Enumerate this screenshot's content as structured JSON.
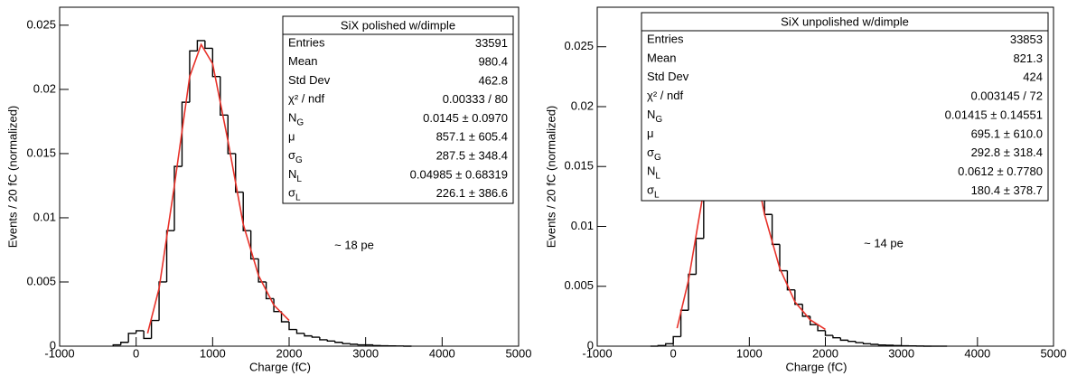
{
  "chart_data": [
    {
      "type": "histogram",
      "x_label": "Charge (fC)",
      "y_label": "Events / 20 fC (normalized)",
      "bins": [
        -300,
        -200,
        -100,
        0,
        100,
        200,
        300,
        400,
        500,
        600,
        700,
        800,
        900,
        1000,
        1100,
        1200,
        1300,
        1400,
        1500,
        1600,
        1700,
        1800,
        1900,
        2000,
        2100,
        2200,
        2300,
        2400,
        2500,
        2600,
        2700,
        2800,
        2900,
        3000,
        3100,
        3200,
        3300,
        3400,
        3500,
        3600
      ],
      "values": [
        0.0001,
        0.0003,
        0.001,
        0.0012,
        0.0006,
        0.002,
        0.005,
        0.009,
        0.014,
        0.019,
        0.023,
        0.0238,
        0.0232,
        0.021,
        0.018,
        0.015,
        0.012,
        0.009,
        0.0068,
        0.005,
        0.0037,
        0.0027,
        0.0019,
        0.0013,
        0.001,
        0.0008,
        0.0007,
        0.0005,
        0.0004,
        0.0003,
        0.0002,
        0.00015,
        0.0001,
        0.0001,
        5e-05,
        3e-05,
        2e-05,
        1e-05,
        0
      ],
      "color": "#000000",
      "fit": {
        "x": [
          150,
          300,
          500,
          700,
          850,
          1000,
          1200,
          1400,
          1600,
          1800,
          2000
        ],
        "values": [
          0.001,
          0.0045,
          0.0125,
          0.021,
          0.0235,
          0.022,
          0.016,
          0.0095,
          0.0055,
          0.0032,
          0.002
        ],
        "color": "#e8322a"
      },
      "xlim": [
        -1000,
        5000
      ],
      "xticks": [
        -1000,
        0,
        1000,
        2000,
        3000,
        4000,
        5000
      ],
      "ylim": [
        0,
        0.0264
      ],
      "yticks": [
        0,
        0.005,
        0.01,
        0.015,
        0.02,
        0.025
      ],
      "stats": {
        "title": "SiX polished w/dimple",
        "rows": [
          {
            "name": "Entries",
            "value": "33591"
          },
          {
            "name": "Mean",
            "value": "980.4"
          },
          {
            "name": "Std Dev",
            "value": "462.8"
          },
          {
            "name": "χ² / ndf",
            "value": "0.00333 / 80"
          },
          {
            "name": "N",
            "sub": "G",
            "value": "0.0145 ± 0.0970"
          },
          {
            "name": "μ",
            "value": "857.1 ± 605.4"
          },
          {
            "name": "σ",
            "sub": "G",
            "value": "287.5 ± 348.4"
          },
          {
            "name": "N",
            "sub": "L",
            "value": "0.04985 ± 0.68319"
          },
          {
            "name": "σ",
            "sub": "L",
            "value": "226.1 ± 386.6"
          }
        ]
      },
      "annotation": "~ 18 pe",
      "annotation_color": "#ff0000"
    },
    {
      "type": "histogram",
      "x_label": "Charge (fC)",
      "y_label": "Events / 20 fC (normalized)",
      "bins": [
        -300,
        -200,
        -100,
        0,
        100,
        200,
        300,
        400,
        500,
        600,
        700,
        800,
        900,
        1000,
        1100,
        1200,
        1300,
        1400,
        1500,
        1600,
        1700,
        1800,
        1900,
        2000,
        2100,
        2200,
        2300,
        2400,
        2500,
        2600,
        2700,
        2800,
        2900,
        3000,
        3100,
        3200,
        3300,
        3400,
        3500,
        3600
      ],
      "values": [
        0,
        5e-05,
        0.0002,
        0.0008,
        0.003,
        0.006,
        0.009,
        0.013,
        0.018,
        0.023,
        0.025,
        0.0235,
        0.02,
        0.017,
        0.014,
        0.011,
        0.0085,
        0.0063,
        0.0047,
        0.0035,
        0.0025,
        0.0018,
        0.0013,
        0.0009,
        0.0007,
        0.0005,
        0.0004,
        0.0003,
        0.0002,
        0.00015,
        0.0001,
        8e-05,
        5e-05,
        3e-05,
        2e-05,
        1e-05,
        0,
        0,
        0
      ],
      "color": "#000000",
      "fit": {
        "x": [
          50,
          200,
          400,
          600,
          720,
          850,
          1000,
          1200,
          1400,
          1600,
          1800,
          2000
        ],
        "values": [
          0.0015,
          0.0055,
          0.013,
          0.022,
          0.025,
          0.023,
          0.0175,
          0.011,
          0.0065,
          0.0037,
          0.0022,
          0.0014
        ],
        "color": "#e8322a"
      },
      "xlim": [
        -1000,
        5000
      ],
      "xticks": [
        -1000,
        0,
        1000,
        2000,
        3000,
        4000,
        5000
      ],
      "ylim": [
        0,
        0.0283
      ],
      "yticks": [
        0,
        0.005,
        0.01,
        0.015,
        0.02,
        0.025
      ],
      "stats": {
        "title": "SiX unpolished w/dimple",
        "rows": [
          {
            "name": "Entries",
            "value": "33853"
          },
          {
            "name": "Mean",
            "value": "821.3"
          },
          {
            "name": "Std Dev",
            "value": "424"
          },
          {
            "name": "χ² / ndf",
            "value": "0.003145 / 72"
          },
          {
            "name": "N",
            "sub": "G",
            "value": "0.01415 ± 0.14551"
          },
          {
            "name": "μ",
            "value": "695.1 ± 610.0"
          },
          {
            "name": "σ",
            "sub": "G",
            "value": "292.8 ± 318.4"
          },
          {
            "name": "N",
            "sub": "L",
            "value": "0.0612 ± 0.7780"
          },
          {
            "name": "σ",
            "sub": "L",
            "value": "180.4 ± 378.7"
          }
        ]
      },
      "annotation": "~ 14 pe",
      "annotation_color": "#ff0000"
    }
  ]
}
